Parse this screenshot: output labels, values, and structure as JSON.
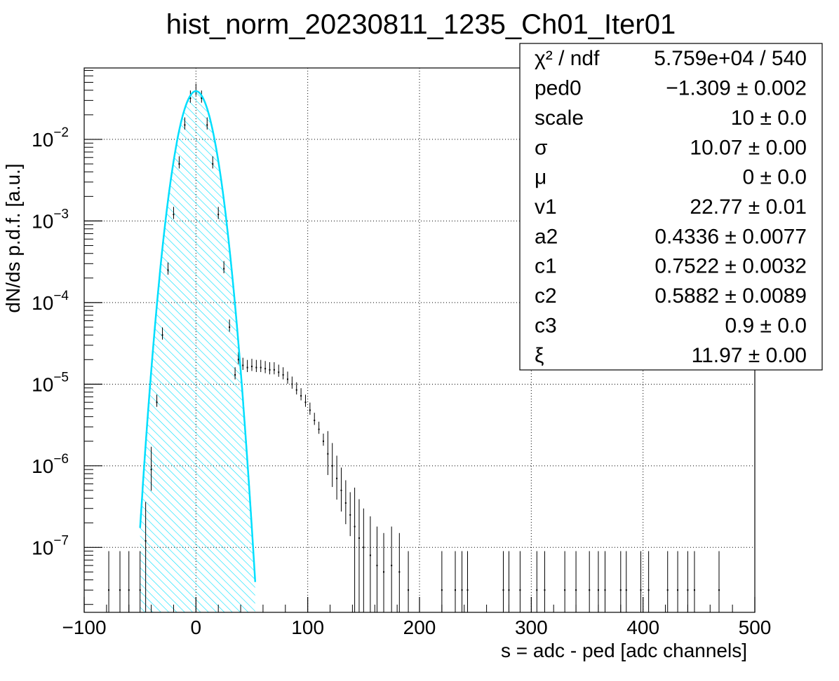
{
  "chart_data": {
    "type": "scatter",
    "title": "hist_norm_20230811_1235_Ch01_Iter01",
    "xlabel": "s = adc - ped [adc channels]",
    "ylabel": "dN/ds p.d.f. [a.u.]",
    "xlim": [
      -100,
      500
    ],
    "ylim": [
      1.6e-08,
      0.075
    ],
    "y_scale": "log",
    "grid": true,
    "x_ticks": [
      {
        "value": -100,
        "label": "−100"
      },
      {
        "value": 0,
        "label": "0"
      },
      {
        "value": 100,
        "label": "100"
      },
      {
        "value": 200,
        "label": "200"
      },
      {
        "value": 300,
        "label": "300"
      },
      {
        "value": 400,
        "label": "400"
      },
      {
        "value": 500,
        "label": "500"
      }
    ],
    "y_ticks": [
      {
        "value": 1e-07,
        "mant": "10",
        "exp": "−7"
      },
      {
        "value": 1e-06,
        "mant": "10",
        "exp": "−6"
      },
      {
        "value": 1e-05,
        "mant": "10",
        "exp": "−5"
      },
      {
        "value": 0.0001,
        "mant": "10",
        "exp": "−4"
      },
      {
        "value": 0.001,
        "mant": "10",
        "exp": "−3"
      },
      {
        "value": 0.01,
        "mant": "10",
        "exp": "−2"
      }
    ],
    "pedestal_peak": {
      "x": 0,
      "y": 0.039,
      "sigma": 10.07
    },
    "series": [
      {
        "kind": "histogram_points",
        "color": "#000000",
        "points": [
          [
            -50,
            3e-08
          ],
          [
            -45,
            1.2e-07
          ],
          [
            -40,
            9e-07
          ],
          [
            -35,
            6e-06
          ],
          [
            -30,
            4e-05
          ],
          [
            -25,
            0.00025
          ],
          [
            -20,
            0.0012
          ],
          [
            -15,
            0.005
          ],
          [
            -10,
            0.015
          ],
          [
            -5,
            0.032
          ],
          [
            0,
            0.039
          ],
          [
            5,
            0.032
          ],
          [
            10,
            0.015
          ],
          [
            15,
            0.005
          ],
          [
            20,
            0.0012
          ],
          [
            25,
            0.00026
          ],
          [
            30,
            5e-05
          ],
          [
            35,
            1.3e-05
          ],
          [
            38,
            2e-05
          ],
          [
            42,
            1.7e-05
          ],
          [
            46,
            1.6e-05
          ],
          [
            50,
            1.65e-05
          ],
          [
            54,
            1.6e-05
          ],
          [
            58,
            1.6e-05
          ],
          [
            62,
            1.55e-05
          ],
          [
            66,
            1.5e-05
          ],
          [
            70,
            1.5e-05
          ],
          [
            74,
            1.4e-05
          ],
          [
            78,
            1.3e-05
          ],
          [
            82,
            1.15e-05
          ],
          [
            86,
            1e-05
          ],
          [
            90,
            8.5e-06
          ],
          [
            94,
            7.2e-06
          ],
          [
            98,
            6e-06
          ],
          [
            102,
            4.8e-06
          ],
          [
            106,
            3.6e-06
          ],
          [
            110,
            2.8e-06
          ],
          [
            114,
            2e-06
          ],
          [
            118,
            1.4e-06
          ],
          [
            122,
            1e-06
          ],
          [
            126,
            7e-07
          ],
          [
            130,
            5e-07
          ],
          [
            134,
            3.5e-07
          ],
          [
            138,
            2.5e-07
          ],
          [
            142,
            1.8e-07
          ],
          [
            146,
            1.3e-07
          ],
          [
            150,
            1e-07
          ],
          [
            156,
            8e-08
          ],
          [
            162,
            6e-08
          ],
          [
            168,
            5e-08
          ],
          [
            175,
            6e-08
          ],
          [
            182,
            5e-08
          ],
          [
            190,
            3e-08
          ],
          [
            -78,
            3e-08
          ],
          [
            -68,
            3e-08
          ],
          [
            -60,
            3e-08
          ],
          [
            220,
            3e-08
          ],
          [
            232,
            3e-08
          ],
          [
            238,
            3e-08
          ],
          [
            243,
            3e-08
          ],
          [
            275,
            3e-08
          ],
          [
            280,
            3e-08
          ],
          [
            290,
            3e-08
          ],
          [
            305,
            3e-08
          ],
          [
            312,
            3e-08
          ],
          [
            330,
            3e-08
          ],
          [
            340,
            3e-08
          ],
          [
            352,
            3e-08
          ],
          [
            360,
            3e-08
          ],
          [
            366,
            3e-08
          ],
          [
            380,
            3e-08
          ],
          [
            385,
            3e-08
          ],
          [
            398,
            3e-08
          ],
          [
            405,
            3e-08
          ],
          [
            422,
            3e-08
          ],
          [
            431,
            3e-08
          ],
          [
            440,
            3e-08
          ],
          [
            446,
            3e-08
          ],
          [
            468,
            3e-08
          ]
        ]
      },
      {
        "kind": "fit_curve",
        "color": "#ff0000",
        "x_range": [
          -50,
          50
        ]
      },
      {
        "kind": "filled_gaussian",
        "color": "#00e0ff",
        "x_range": [
          -50,
          53
        ]
      }
    ]
  },
  "stats_box": {
    "rows": [
      {
        "label": "χ² / ndf",
        "value": "5.759e+04 / 540"
      },
      {
        "label": "ped0",
        "value": "−1.309 ± 0.002"
      },
      {
        "label": "scale",
        "value": "10 ± 0.0"
      },
      {
        "label": "σ",
        "value": "10.07 ± 0.00"
      },
      {
        "label": "μ",
        "value": "0 ± 0.0"
      },
      {
        "label": "v1",
        "value": "22.77 ± 0.01"
      },
      {
        "label": "a2",
        "value": "0.4336 ± 0.0077"
      },
      {
        "label": "c1",
        "value": "0.7522 ± 0.0032"
      },
      {
        "label": "c2",
        "value": "0.5882 ± 0.0089"
      },
      {
        "label": "c3",
        "value": "0.9 ± 0.0"
      },
      {
        "label": "ξ",
        "value": "11.97 ± 0.00"
      }
    ]
  }
}
